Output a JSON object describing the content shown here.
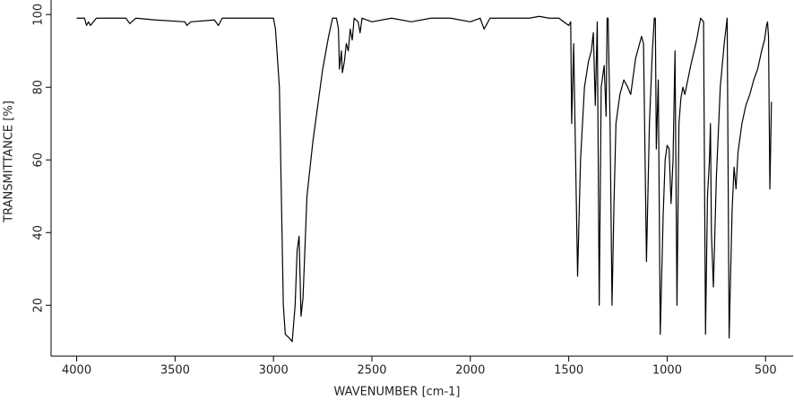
{
  "chart_data": {
    "type": "line",
    "xlabel": "WAVENUMBER [cm-1]",
    "ylabel": "TRANSMITTANCE [%]",
    "color": "#000000",
    "x": [
      4000,
      3960,
      3950,
      3940,
      3930,
      3900,
      3750,
      3730,
      3700,
      3600,
      3450,
      3440,
      3420,
      3300,
      3280,
      3260,
      3000,
      2990,
      2970,
      2960,
      2950,
      2940,
      2920,
      2905,
      2890,
      2880,
      2870,
      2860,
      2850,
      2830,
      2800,
      2750,
      2720,
      2700,
      2680,
      2670,
      2665,
      2655,
      2650,
      2640,
      2630,
      2620,
      2610,
      2600,
      2590,
      2570,
      2560,
      2550,
      2500,
      2400,
      2300,
      2200,
      2100,
      2000,
      1950,
      1930,
      1900,
      1700,
      1650,
      1600,
      1550,
      1500,
      1490,
      1485,
      1475,
      1465,
      1455,
      1440,
      1420,
      1400,
      1385,
      1375,
      1365,
      1355,
      1345,
      1335,
      1320,
      1310,
      1305,
      1300,
      1290,
      1280,
      1270,
      1260,
      1240,
      1220,
      1200,
      1185,
      1175,
      1160,
      1140,
      1130,
      1120,
      1105,
      1090,
      1075,
      1065,
      1060,
      1055,
      1045,
      1035,
      1020,
      1010,
      1000,
      990,
      980,
      970,
      960,
      950,
      940,
      930,
      920,
      910,
      880,
      850,
      830,
      815,
      805,
      795,
      785,
      780,
      775,
      765,
      750,
      730,
      710,
      695,
      685,
      670,
      660,
      650,
      640,
      620,
      600,
      580,
      560,
      540,
      520,
      505,
      495,
      490,
      485,
      478,
      470
    ],
    "values": [
      99,
      99,
      97,
      98,
      97,
      99,
      99,
      97.5,
      99,
      98.5,
      98,
      97,
      98,
      98.5,
      97,
      99,
      99,
      96,
      80,
      50,
      20,
      12,
      11,
      10,
      20,
      35,
      39,
      17,
      22,
      50,
      65,
      85,
      94,
      99,
      99,
      96,
      85,
      90,
      84,
      87,
      92,
      90,
      96,
      93,
      99,
      98,
      95,
      99,
      98,
      99,
      98,
      99,
      99,
      98,
      99,
      96,
      99,
      99,
      99.5,
      99,
      99,
      97,
      98,
      70,
      92,
      60,
      28,
      60,
      80,
      87,
      90,
      95,
      75,
      98,
      20,
      80,
      86,
      72,
      99,
      99,
      70,
      20,
      48,
      70,
      78,
      82,
      80,
      78,
      82,
      88,
      92,
      94,
      92,
      32,
      70,
      90,
      99,
      99,
      63,
      82,
      12,
      45,
      60,
      64,
      63,
      48,
      60,
      90,
      20,
      70,
      77,
      80,
      78,
      86,
      93,
      99,
      98,
      12,
      50,
      60,
      70,
      40,
      25,
      55,
      80,
      92,
      99,
      11,
      46,
      58,
      52,
      62,
      70,
      75,
      78,
      82,
      85,
      90,
      93,
      97,
      98,
      94,
      52,
      76
    ],
    "xlim": [
      4130,
      360
    ],
    "ylim": [
      6,
      104
    ],
    "xticks": [
      4000,
      3500,
      3000,
      2500,
      2000,
      1500,
      1000,
      500
    ],
    "yticks": [
      20,
      40,
      60,
      80,
      100
    ]
  }
}
